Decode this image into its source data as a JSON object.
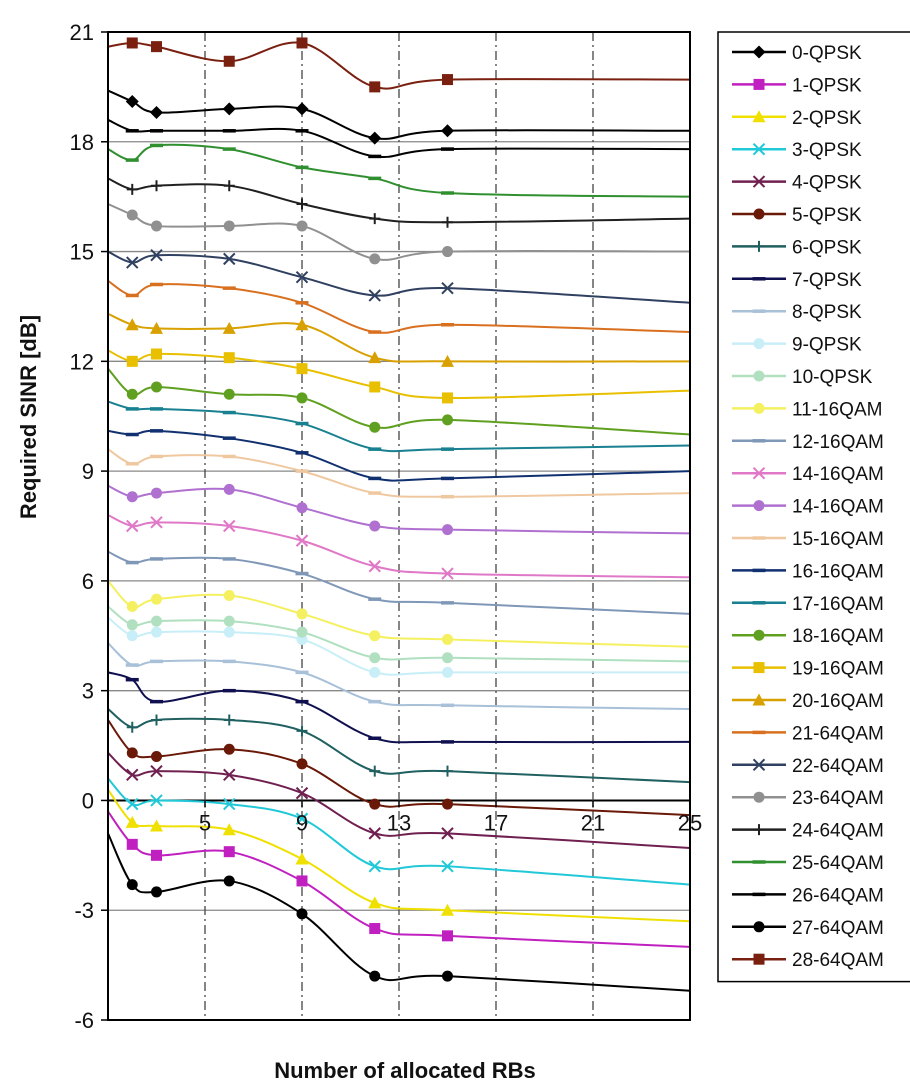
{
  "chart_data": {
    "type": "line",
    "title": "",
    "xlabel": "Number of allocated RBs",
    "ylabel": "Required SINR [dB]",
    "xlim": [
      1,
      25
    ],
    "ylim": [
      -6,
      21
    ],
    "x_ticks": [
      "5",
      "9",
      "13",
      "17",
      "21",
      "25"
    ],
    "y_ticks": [
      "-6",
      "-3",
      "0",
      "3",
      "6",
      "9",
      "12",
      "15",
      "18",
      "21"
    ],
    "grid": "horizontal major lines, dashed vertical lines at ticks",
    "legend_position": "right",
    "x": [
      1,
      2,
      3,
      6,
      9,
      12,
      15,
      25
    ],
    "series": [
      {
        "name": "0-QPSK",
        "color": "#000000",
        "marker": "diamond",
        "values": [
          19.4,
          19.1,
          18.8,
          18.9,
          18.9,
          18.1,
          18.3,
          18.3
        ]
      },
      {
        "name": "1-QPSK",
        "color": "#c020c0",
        "marker": "square",
        "values": [
          -0.3,
          -1.2,
          -1.5,
          -1.4,
          -2.2,
          -3.5,
          -3.7,
          -4.0
        ]
      },
      {
        "name": "2-QPSK",
        "color": "#f0e000",
        "marker": "triangle",
        "values": [
          0.3,
          -0.6,
          -0.7,
          -0.8,
          -1.6,
          -2.8,
          -3.0,
          -3.3
        ]
      },
      {
        "name": "3-QPSK",
        "color": "#20c8d8",
        "marker": "x",
        "values": [
          0.6,
          -0.1,
          0.0,
          -0.1,
          -0.5,
          -1.8,
          -1.8,
          -2.3
        ]
      },
      {
        "name": "4-QPSK",
        "color": "#702050",
        "marker": "x",
        "values": [
          1.3,
          0.7,
          0.8,
          0.7,
          0.2,
          -0.9,
          -0.9,
          -1.3
        ]
      },
      {
        "name": "5-QPSK",
        "color": "#6a1808",
        "marker": "circle",
        "values": [
          2.2,
          1.3,
          1.2,
          1.4,
          1.0,
          -0.1,
          -0.1,
          -0.4
        ]
      },
      {
        "name": "6-QPSK",
        "color": "#206060",
        "marker": "plus",
        "values": [
          2.5,
          2.0,
          2.2,
          2.2,
          1.9,
          0.8,
          0.8,
          0.5
        ]
      },
      {
        "name": "7-QPSK",
        "color": "#101050",
        "marker": "dash",
        "values": [
          3.5,
          3.3,
          2.7,
          3.0,
          2.7,
          1.7,
          1.6,
          1.6
        ]
      },
      {
        "name": "8-QPSK",
        "color": "#a8c0d8",
        "marker": "dash",
        "values": [
          4.3,
          3.7,
          3.8,
          3.8,
          3.5,
          2.7,
          2.6,
          2.5
        ]
      },
      {
        "name": "9-QPSK",
        "color": "#c8eef8",
        "marker": "circle",
        "values": [
          5.0,
          4.5,
          4.6,
          4.6,
          4.4,
          3.5,
          3.5,
          3.5
        ]
      },
      {
        "name": "10-QPSK",
        "color": "#b0e0c0",
        "marker": "circle",
        "values": [
          5.3,
          4.8,
          4.9,
          4.9,
          4.6,
          3.9,
          3.9,
          3.8
        ]
      },
      {
        "name": "11-16QAM",
        "color": "#f4f060",
        "marker": "circle",
        "values": [
          6.0,
          5.3,
          5.5,
          5.6,
          5.1,
          4.5,
          4.4,
          4.2
        ]
      },
      {
        "name": "12-16QAM",
        "color": "#8098b8",
        "marker": "dash",
        "values": [
          6.8,
          6.5,
          6.6,
          6.6,
          6.2,
          5.5,
          5.4,
          5.1
        ]
      },
      {
        "name": "14-16QAM",
        "color": "#e078c8",
        "marker": "x",
        "values": [
          7.8,
          7.5,
          7.6,
          7.5,
          7.1,
          6.4,
          6.2,
          6.1
        ]
      },
      {
        "name": "14-16QAM",
        "color": "#b070d0",
        "marker": "circle",
        "values": [
          8.6,
          8.3,
          8.4,
          8.5,
          8.0,
          7.5,
          7.4,
          7.3
        ]
      },
      {
        "name": "15-16QAM",
        "color": "#f0c8a0",
        "marker": "dash",
        "values": [
          9.6,
          9.2,
          9.4,
          9.4,
          9.0,
          8.4,
          8.3,
          8.4
        ]
      },
      {
        "name": "16-16QAM",
        "color": "#103070",
        "marker": "dash",
        "values": [
          10.1,
          10.0,
          10.1,
          9.9,
          9.5,
          8.8,
          8.8,
          9.0
        ]
      },
      {
        "name": "17-16QAM",
        "color": "#188090",
        "marker": "dash",
        "values": [
          10.9,
          10.7,
          10.7,
          10.6,
          10.3,
          9.6,
          9.6,
          9.7
        ]
      },
      {
        "name": "18-16QAM",
        "color": "#60a020",
        "marker": "circle",
        "values": [
          11.8,
          11.1,
          11.3,
          11.1,
          11.0,
          10.2,
          10.4,
          10.0
        ]
      },
      {
        "name": "19-16QAM",
        "color": "#e8c000",
        "marker": "square",
        "values": [
          12.3,
          12.0,
          12.2,
          12.1,
          11.8,
          11.3,
          11.0,
          11.2
        ]
      },
      {
        "name": "20-16QAM",
        "color": "#d8a000",
        "marker": "triangle",
        "values": [
          13.3,
          13.0,
          12.9,
          12.9,
          13.0,
          12.1,
          12.0,
          12.0
        ]
      },
      {
        "name": "21-64QAM",
        "color": "#d87020",
        "marker": "dash",
        "values": [
          14.2,
          13.8,
          14.1,
          14.0,
          13.6,
          12.8,
          13.0,
          12.8
        ]
      },
      {
        "name": "22-64QAM",
        "color": "#304060",
        "marker": "x",
        "values": [
          15.0,
          14.7,
          14.9,
          14.8,
          14.3,
          13.8,
          14.0,
          13.6
        ]
      },
      {
        "name": "23-64QAM",
        "color": "#909090",
        "marker": "circle",
        "values": [
          16.3,
          16.0,
          15.7,
          15.7,
          15.7,
          14.8,
          15.0,
          15.0
        ]
      },
      {
        "name": "24-64QAM",
        "color": "#202020",
        "marker": "plus",
        "values": [
          17.0,
          16.7,
          16.8,
          16.8,
          16.3,
          15.9,
          15.8,
          15.9
        ]
      },
      {
        "name": "25-64QAM",
        "color": "#309030",
        "marker": "dash",
        "values": [
          17.8,
          17.5,
          17.9,
          17.8,
          17.3,
          17.0,
          16.6,
          16.5
        ]
      },
      {
        "name": "26-64QAM",
        "color": "#000000",
        "marker": "dash",
        "values": [
          18.6,
          18.3,
          18.3,
          18.3,
          18.3,
          17.6,
          17.8,
          17.8
        ]
      },
      {
        "name": "27-64QAM",
        "color": "#000000",
        "marker": "circle",
        "values": [
          -0.9,
          -2.3,
          -2.5,
          -2.2,
          -3.1,
          -4.8,
          -4.8,
          -5.2
        ]
      },
      {
        "name": "28-64QAM",
        "color": "#7a2010",
        "marker": "square",
        "values": [
          20.6,
          20.7,
          20.6,
          20.2,
          20.7,
          19.5,
          19.7,
          19.7
        ]
      }
    ]
  }
}
